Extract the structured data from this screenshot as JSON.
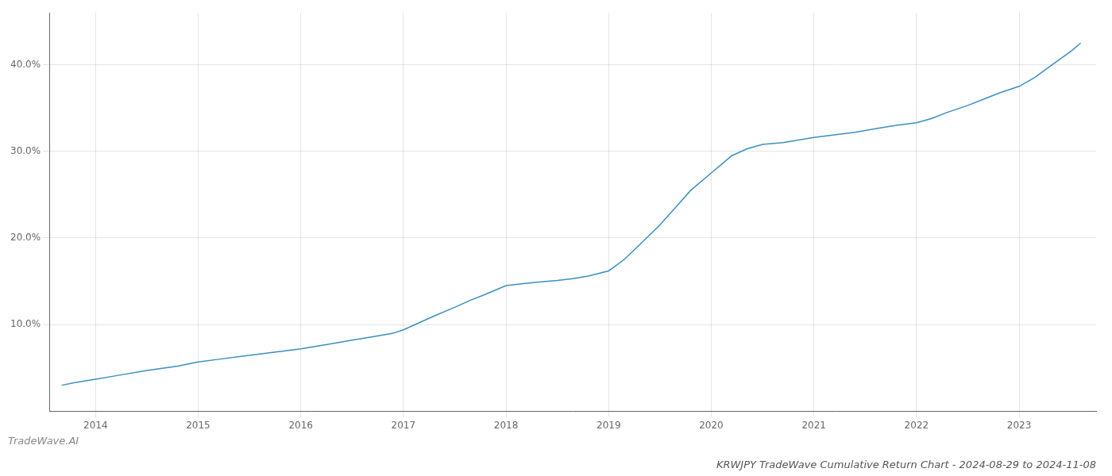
{
  "chart_data": {
    "type": "line",
    "title": "KRWJPY TradeWave Cumulative Return Chart - 2024-08-29 to 2024-11-08",
    "annotations": [
      "TradeWave.AI"
    ],
    "x": [
      2013.67,
      2013.8,
      2014.0,
      2014.2,
      2014.5,
      2014.8,
      2015.0,
      2015.2,
      2015.4,
      2015.6,
      2015.8,
      2016.0,
      2016.15,
      2016.3,
      2016.5,
      2016.7,
      2016.9,
      2017.0,
      2017.15,
      2017.3,
      2017.5,
      2017.65,
      2017.8,
      2018.0,
      2018.15,
      2018.3,
      2018.5,
      2018.65,
      2018.8,
      2019.0,
      2019.15,
      2019.3,
      2019.5,
      2019.65,
      2019.8,
      2020.0,
      2020.1,
      2020.2,
      2020.35,
      2020.5,
      2020.7,
      2020.85,
      2021.0,
      2021.2,
      2021.4,
      2021.6,
      2021.8,
      2022.0,
      2022.15,
      2022.3,
      2022.5,
      2022.65,
      2022.8,
      2023.0,
      2023.15,
      2023.3,
      2023.5,
      2023.6
    ],
    "values": [
      3.0,
      3.3,
      3.7,
      4.1,
      4.7,
      5.2,
      5.7,
      6.0,
      6.3,
      6.6,
      6.9,
      7.2,
      7.5,
      7.8,
      8.2,
      8.6,
      9.0,
      9.4,
      10.2,
      11.0,
      12.0,
      12.8,
      13.5,
      14.5,
      14.7,
      14.9,
      15.1,
      15.3,
      15.6,
      16.2,
      17.5,
      19.2,
      21.5,
      23.5,
      25.5,
      27.5,
      28.5,
      29.5,
      30.3,
      30.8,
      31.0,
      31.3,
      31.6,
      31.9,
      32.2,
      32.6,
      33.0,
      33.3,
      33.8,
      34.5,
      35.3,
      36.0,
      36.7,
      37.5,
      38.5,
      39.8,
      41.5,
      42.5
    ],
    "color": "#3a8fc1",
    "xlim": [
      2013.55,
      2023.75
    ],
    "xticks": [
      2014,
      2015,
      2016,
      2017,
      2018,
      2019,
      2020,
      2021,
      2022,
      2023
    ],
    "ylim": [
      0,
      46
    ],
    "yticks": [
      {
        "value": 10,
        "label": "10.0%"
      },
      {
        "value": 20,
        "label": "20.0%"
      },
      {
        "value": 30,
        "label": "30.0%"
      },
      {
        "value": 40,
        "label": "40.0%"
      }
    ],
    "grid": true
  }
}
